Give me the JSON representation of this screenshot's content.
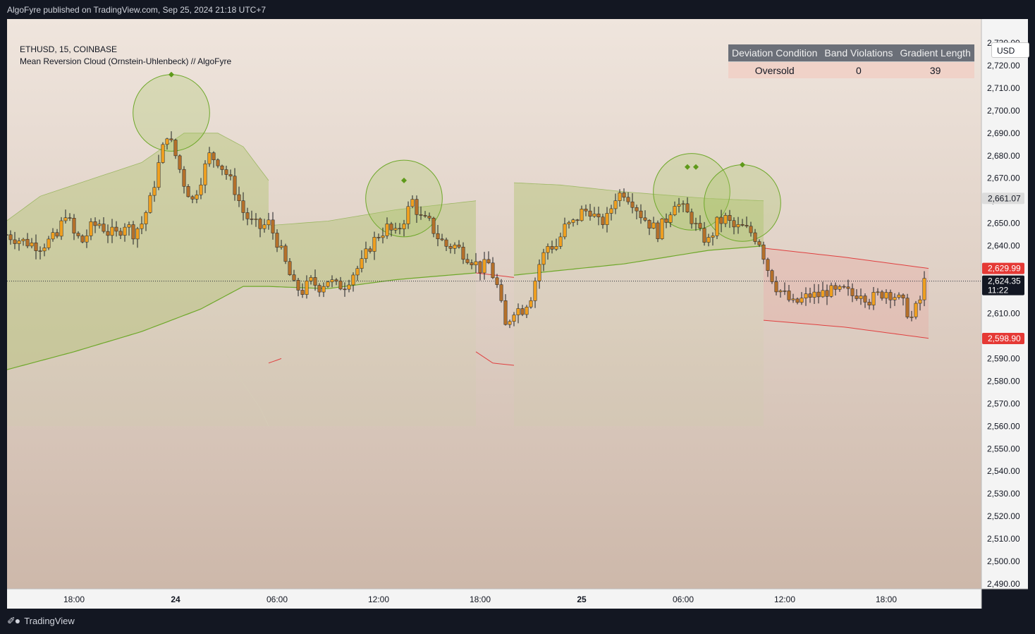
{
  "header": {
    "published": "AlgoFyre published on TradingView.com, Sep 25, 2024 21:18 UTC+7"
  },
  "legend": {
    "symbol_line": "ETHUSD, 15, COINBASE",
    "indicator": "Mean Reversion Cloud (Ornstein-Uhlenbeck) // AlgoFyre"
  },
  "currency_button": "USD",
  "info_table": {
    "headers": [
      "Deviation Condition",
      "Band Violations",
      "Gradient Length"
    ],
    "values": [
      "Oversold",
      "0",
      "39"
    ]
  },
  "footer": {
    "brand": "TradingView",
    "logo": "tradingview-logo-icon"
  },
  "colors": {
    "bull": "#f0a020",
    "bear": "#b5702a",
    "band_green": "#6ea82a",
    "band_red": "#e04040",
    "marker_green": "#5e9a1a"
  },
  "chart_data": {
    "type": "candlestick",
    "symbol": "ETHUSD",
    "timeframe": "15",
    "ylim": [
      2485,
      2735
    ],
    "y_ticks": [
      2730,
      2720,
      2710,
      2700,
      2690,
      2680,
      2670,
      2660,
      2650,
      2640,
      2630,
      2620,
      2610,
      2600,
      2590,
      2580,
      2570,
      2560,
      2550,
      2540,
      2530,
      2520,
      2510,
      2500,
      2490
    ],
    "y_tick_labels": [
      "2,730.00",
      "2,720.00",
      "2,710.00",
      "2,700.00",
      "2,690.00",
      "2,680.00",
      "2,670.00",
      "2,660.00",
      "2,650.00",
      "2,640.00",
      "2,630.00",
      "2,620.00",
      "2,610.00",
      "2,600.00",
      "2,590.00",
      "2,580.00",
      "2,570.00",
      "2,560.00",
      "2,550.00",
      "2,540.00",
      "2,530.00",
      "2,520.00",
      "2,510.00",
      "2,500.00",
      "2,490.00"
    ],
    "x_labels": [
      {
        "label": "18:00",
        "bar": 0,
        "bold": false
      },
      {
        "label": "24",
        "bar": 24,
        "bold": true
      },
      {
        "label": "06:00",
        "bar": 48,
        "bold": false
      },
      {
        "label": "12:00",
        "bar": 72,
        "bold": false
      },
      {
        "label": "18:00",
        "bar": 96,
        "bold": false
      },
      {
        "label": "25",
        "bar": 120,
        "bold": true
      },
      {
        "label": "06:00",
        "bar": 144,
        "bold": false
      },
      {
        "label": "12:00",
        "bar": 168,
        "bold": false
      },
      {
        "label": "18:00",
        "bar": 192,
        "bold": false
      }
    ],
    "price_labels": [
      {
        "value": 2661.07,
        "text": "2,661.07",
        "style": "gray"
      },
      {
        "value": 2629.99,
        "text": "2,629.99",
        "style": "red"
      },
      {
        "value": 2624.35,
        "text": "2,624.35",
        "sub": "11:22",
        "style": "dark"
      },
      {
        "value": 2598.9,
        "text": "2,598.90",
        "style": "red"
      }
    ],
    "current_price": 2624.35,
    "price_anchors": [
      [
        -16,
        2645
      ],
      [
        -12,
        2642
      ],
      [
        -8,
        2640
      ],
      [
        -4,
        2644
      ],
      [
        -2,
        2655
      ],
      [
        0,
        2645
      ],
      [
        2,
        2642
      ],
      [
        4,
        2648
      ],
      [
        6,
        2650
      ],
      [
        8,
        2646
      ],
      [
        10,
        2645
      ],
      [
        12,
        2650
      ],
      [
        14,
        2646
      ],
      [
        16,
        2650
      ],
      [
        18,
        2660
      ],
      [
        20,
        2676
      ],
      [
        22,
        2690
      ],
      [
        24,
        2680
      ],
      [
        26,
        2668
      ],
      [
        28,
        2660
      ],
      [
        30,
        2670
      ],
      [
        32,
        2680
      ],
      [
        34,
        2678
      ],
      [
        36,
        2672
      ],
      [
        38,
        2665
      ],
      [
        40,
        2655
      ],
      [
        42,
        2650
      ],
      [
        44,
        2648
      ],
      [
        46,
        2650
      ],
      [
        48,
        2642
      ],
      [
        50,
        2632
      ],
      [
        52,
        2622
      ],
      [
        54,
        2620
      ],
      [
        56,
        2624
      ],
      [
        58,
        2622
      ],
      [
        60,
        2625
      ],
      [
        62,
        2622
      ],
      [
        64,
        2623
      ],
      [
        66,
        2628
      ],
      [
        68,
        2632
      ],
      [
        70,
        2640
      ],
      [
        72,
        2645
      ],
      [
        74,
        2648
      ],
      [
        76,
        2645
      ],
      [
        78,
        2652
      ],
      [
        80,
        2660
      ],
      [
        82,
        2652
      ],
      [
        84,
        2650
      ],
      [
        86,
        2644
      ],
      [
        88,
        2640
      ],
      [
        90,
        2640
      ],
      [
        92,
        2637
      ],
      [
        94,
        2634
      ],
      [
        96,
        2630
      ],
      [
        98,
        2632
      ],
      [
        100,
        2622
      ],
      [
        102,
        2604
      ],
      [
        104,
        2612
      ],
      [
        106,
        2612
      ],
      [
        108,
        2618
      ],
      [
        110,
        2632
      ],
      [
        112,
        2640
      ],
      [
        114,
        2640
      ],
      [
        116,
        2648
      ],
      [
        118,
        2650
      ],
      [
        120,
        2655
      ],
      [
        122,
        2656
      ],
      [
        124,
        2650
      ],
      [
        126,
        2652
      ],
      [
        128,
        2662
      ],
      [
        130,
        2664
      ],
      [
        132,
        2660
      ],
      [
        134,
        2654
      ],
      [
        136,
        2650
      ],
      [
        138,
        2646
      ],
      [
        140,
        2652
      ],
      [
        142,
        2660
      ],
      [
        144,
        2656
      ],
      [
        146,
        2652
      ],
      [
        148,
        2645
      ],
      [
        150,
        2642
      ],
      [
        152,
        2650
      ],
      [
        154,
        2652
      ],
      [
        156,
        2648
      ],
      [
        158,
        2648
      ],
      [
        160,
        2646
      ],
      [
        162,
        2642
      ],
      [
        164,
        2630
      ],
      [
        166,
        2622
      ],
      [
        168,
        2618
      ],
      [
        170,
        2614
      ],
      [
        172,
        2616
      ],
      [
        174,
        2618
      ],
      [
        176,
        2618
      ],
      [
        178,
        2620
      ],
      [
        180,
        2619
      ],
      [
        182,
        2620
      ],
      [
        184,
        2618
      ],
      [
        186,
        2620
      ],
      [
        188,
        2616
      ],
      [
        190,
        2618
      ],
      [
        192,
        2620
      ],
      [
        194,
        2618
      ],
      [
        196,
        2614
      ],
      [
        198,
        2608
      ],
      [
        200,
        2616
      ],
      [
        201,
        2624
      ]
    ],
    "pivot_markers": [
      {
        "bar": 23,
        "price": 2699,
        "circle": true,
        "radius_price": 17
      },
      {
        "bar": 78,
        "price": 2661,
        "circle": true,
        "radius_price": 17
      },
      {
        "bar": 146,
        "price": 2664,
        "circle": true,
        "radius_price": 17
      },
      {
        "bar": 158,
        "price": 2659,
        "circle": true,
        "radius_price": 17
      }
    ],
    "diamond_markers": [
      {
        "bar": 23,
        "price": 2716
      },
      {
        "bar": 78,
        "price": 2669
      },
      {
        "bar": 145,
        "price": 2675
      },
      {
        "bar": 147,
        "price": 2675
      },
      {
        "bar": 158,
        "price": 2676
      }
    ],
    "segments": [
      {
        "from": -16,
        "to": 46,
        "type": "bull",
        "mean": [
          [
            -16,
            2585
          ],
          [
            0,
            2593
          ],
          [
            16,
            2602
          ],
          [
            30,
            2612
          ],
          [
            40,
            2622
          ],
          [
            46,
            2622
          ]
        ],
        "upper": [
          [
            -16,
            2651
          ],
          [
            -8,
            2662
          ],
          [
            0,
            2667
          ],
          [
            16,
            2677
          ],
          [
            26,
            2690
          ],
          [
            34,
            2690
          ],
          [
            40,
            2684
          ],
          [
            46,
            2669
          ]
        ],
        "lower_curve": [
          [
            36,
            2592
          ],
          [
            40,
            2579
          ],
          [
            44,
            2568
          ],
          [
            46,
            2560
          ]
        ]
      },
      {
        "from": 46,
        "to": 95,
        "type": "bull_mid",
        "mean": [
          [
            46,
            2622
          ],
          [
            60,
            2621
          ],
          [
            76,
            2625
          ],
          [
            95,
            2628
          ]
        ],
        "upper": [
          [
            46,
            2649
          ],
          [
            60,
            2651
          ],
          [
            76,
            2656
          ],
          [
            95,
            2660
          ]
        ],
        "lower_stub": [
          [
            46,
            2588
          ],
          [
            49,
            2590
          ]
        ]
      },
      {
        "from": 95,
        "to": 104,
        "type": "bear_flip",
        "upper_red": [
          [
            95,
            2628
          ],
          [
            104,
            2626
          ]
        ],
        "lower_red": [
          [
            95,
            2593
          ],
          [
            99,
            2588
          ],
          [
            104,
            2587
          ]
        ]
      },
      {
        "from": 104,
        "to": 163,
        "type": "bull_late",
        "mean": [
          [
            104,
            2627
          ],
          [
            130,
            2632
          ],
          [
            150,
            2638
          ],
          [
            163,
            2640
          ]
        ],
        "upper": [
          [
            104,
            2668
          ],
          [
            115,
            2667
          ],
          [
            130,
            2664
          ],
          [
            150,
            2661
          ],
          [
            163,
            2660
          ]
        ]
      },
      {
        "from": 163,
        "to": 202,
        "type": "bear",
        "upper_red": [
          [
            163,
            2639
          ],
          [
            182,
            2635
          ],
          [
            202,
            2630
          ]
        ],
        "lower_red": [
          [
            163,
            2607
          ],
          [
            182,
            2604
          ],
          [
            202,
            2599
          ]
        ]
      }
    ]
  }
}
